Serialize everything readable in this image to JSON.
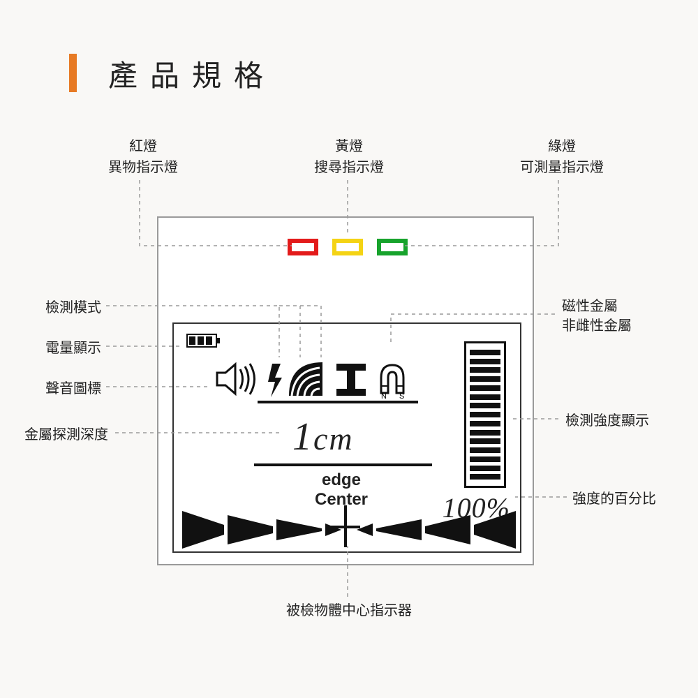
{
  "title": "產品規格",
  "colors": {
    "accent": "#e77a24",
    "panel_border": "#9a9a9a",
    "lcd_fg": "#111111",
    "bg": "#f9f8f6",
    "led_red": "#e31b1b",
    "led_yellow": "#f4d314",
    "led_green": "#17a32c",
    "dash": "#9a9a9a"
  },
  "top_labels": {
    "red": {
      "line1": "紅燈",
      "line2": "異物指示燈"
    },
    "yellow": {
      "line1": "黃燈",
      "line2": "搜尋指示燈"
    },
    "green": {
      "line1": "綠燈",
      "line2": "可測量指示燈"
    }
  },
  "left_labels": {
    "mode": "檢測模式",
    "battery": "電量顯示",
    "sound": "聲音圖標",
    "depth": "金屬探測深度"
  },
  "right_labels": {
    "metal": {
      "line1": "磁性金屬",
      "line2": "非雌性金屬"
    },
    "strength": "檢測強度顯示",
    "percent": "強度的百分比"
  },
  "bottom_label": "被檢物體中心指示器",
  "lcd": {
    "depth_value": "1",
    "depth_unit": "cm",
    "edge_line1": "edge",
    "edge_line2": "Center",
    "percent_value": "100",
    "percent_symbol": "%",
    "magnet_n": "N",
    "magnet_s": "S",
    "strength_segments": 15,
    "battery_bars": 3
  }
}
